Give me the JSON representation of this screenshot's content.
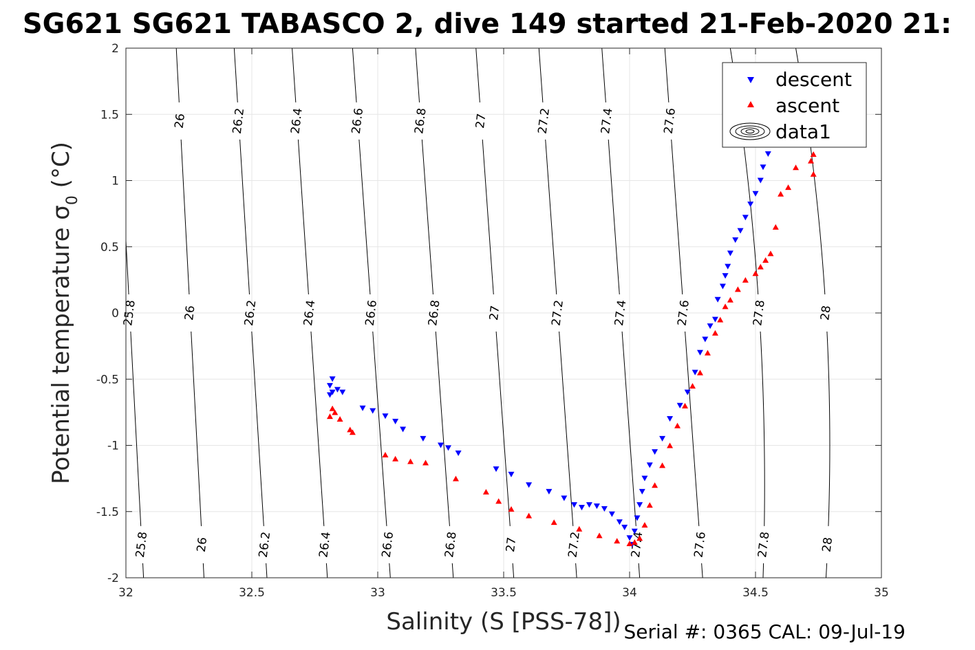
{
  "chart_data": {
    "type": "scatter",
    "title": "SG621 SG621 TABASCO 2, dive 149 started 21-Feb-2020 21:",
    "xlabel": "Salinity (S [PSS-78])",
    "ylabel_main": "Potential temperature ",
    "ylabel_sym": "σ",
    "ylabel_sub": "0",
    "ylabel_unit": " (°C)",
    "xlim": [
      32,
      35
    ],
    "ylim": [
      -2,
      2
    ],
    "xticks": [
      32,
      32.5,
      33,
      33.5,
      34,
      34.5,
      35
    ],
    "xtick_labels": [
      "32",
      "32.5",
      "33",
      "33.5",
      "34",
      "34.5",
      "35"
    ],
    "yticks": [
      -2,
      -1.5,
      -1,
      -0.5,
      0,
      0.5,
      1,
      1.5,
      2
    ],
    "ytick_labels": [
      "-2",
      "-1.5",
      "-1",
      "-0.5",
      "0",
      "0.5",
      "1",
      "1.5",
      "2"
    ],
    "grid": true,
    "legend_position": "top-right",
    "legend": [
      "descent",
      "ascent",
      "data1"
    ],
    "contours": {
      "levels": [
        25.8,
        26,
        26.2,
        26.4,
        26.6,
        26.8,
        27,
        27.2,
        27.4,
        27.6,
        27.8,
        28
      ],
      "level_labels": [
        "25.8",
        "26",
        "26.2",
        "26.4",
        "26.6",
        "26.8",
        "27",
        "27.2",
        "27.4",
        "27.6",
        "27.8",
        "28"
      ],
      "salinity_at_bottom": [
        32.07,
        32.31,
        32.56,
        32.8,
        33.05,
        33.3,
        33.54,
        33.79,
        34.04,
        34.29,
        34.53,
        34.78
      ],
      "salinity_at_top": [
        31.96,
        32.2,
        32.43,
        32.66,
        32.9,
        33.15,
        33.39,
        33.64,
        33.89,
        34.14,
        34.4,
        34.66
      ],
      "curvature": [
        0,
        0,
        0,
        0,
        0,
        0,
        0,
        0,
        0,
        0,
        0.05,
        0.06
      ],
      "label_temps": [
        -1.75,
        0,
        1.45
      ]
    },
    "series": [
      {
        "name": "descent",
        "color": "#0000ff",
        "marker": "triangle-down",
        "x": [
          32.82,
          32.81,
          32.82,
          32.81,
          32.84,
          32.86,
          32.94,
          32.98,
          33.03,
          33.07,
          33.1,
          33.18,
          33.25,
          33.28,
          33.32,
          33.47,
          33.53,
          33.6,
          33.68,
          33.74,
          33.78,
          33.81,
          33.84,
          33.87,
          33.9,
          33.93,
          33.96,
          33.98,
          34.0,
          34.01,
          34.02,
          34.03,
          34.04,
          34.05,
          34.06,
          34.08,
          34.1,
          34.13,
          34.16,
          34.2,
          34.23,
          34.26,
          34.28,
          34.3,
          34.32,
          34.34,
          34.35,
          34.37,
          34.38,
          34.39,
          34.4,
          34.42,
          34.44,
          34.46,
          34.48,
          34.5,
          34.52,
          34.53,
          34.55
        ],
        "y": [
          -0.5,
          -0.55,
          -0.6,
          -0.62,
          -0.58,
          -0.6,
          -0.72,
          -0.74,
          -0.78,
          -0.82,
          -0.88,
          -0.95,
          -1.0,
          -1.02,
          -1.06,
          -1.18,
          -1.22,
          -1.3,
          -1.35,
          -1.4,
          -1.45,
          -1.47,
          -1.45,
          -1.46,
          -1.48,
          -1.52,
          -1.58,
          -1.62,
          -1.7,
          -1.75,
          -1.65,
          -1.55,
          -1.45,
          -1.35,
          -1.25,
          -1.15,
          -1.05,
          -0.95,
          -0.8,
          -0.7,
          -0.6,
          -0.45,
          -0.3,
          -0.2,
          -0.1,
          -0.05,
          0.1,
          0.2,
          0.28,
          0.35,
          0.45,
          0.55,
          0.62,
          0.72,
          0.82,
          0.9,
          1.0,
          1.1,
          1.2
        ]
      },
      {
        "name": "ascent",
        "color": "#ff0000",
        "marker": "triangle-up",
        "x": [
          32.81,
          32.82,
          32.83,
          32.85,
          32.89,
          32.9,
          33.03,
          33.07,
          33.13,
          33.19,
          33.31,
          33.43,
          33.48,
          33.53,
          33.6,
          33.7,
          33.8,
          33.88,
          33.95,
          34.0,
          34.02,
          34.04,
          34.06,
          34.08,
          34.1,
          34.13,
          34.16,
          34.19,
          34.22,
          34.25,
          34.28,
          34.31,
          34.34,
          34.36,
          34.38,
          34.4,
          34.43,
          34.46,
          34.5,
          34.52,
          34.54,
          34.56,
          34.58,
          34.6,
          34.63,
          34.66,
          34.72,
          34.73,
          34.73
        ],
        "y": [
          -0.78,
          -0.72,
          -0.75,
          -0.8,
          -0.88,
          -0.9,
          -1.07,
          -1.1,
          -1.12,
          -1.13,
          -1.25,
          -1.35,
          -1.42,
          -1.48,
          -1.53,
          -1.58,
          -1.63,
          -1.68,
          -1.72,
          -1.74,
          -1.73,
          -1.7,
          -1.6,
          -1.45,
          -1.3,
          -1.15,
          -1.0,
          -0.85,
          -0.7,
          -0.55,
          -0.45,
          -0.3,
          -0.15,
          -0.05,
          0.05,
          0.1,
          0.18,
          0.25,
          0.3,
          0.35,
          0.4,
          0.45,
          0.65,
          0.9,
          0.95,
          1.1,
          1.15,
          1.2,
          1.05
        ]
      }
    ]
  },
  "footer": "Serial #: 0365  CAL: 09-Jul-19",
  "colors": {
    "descent": "#0000ff",
    "ascent": "#ff0000",
    "axis": "#262626",
    "grid": "#e6e6e6"
  }
}
